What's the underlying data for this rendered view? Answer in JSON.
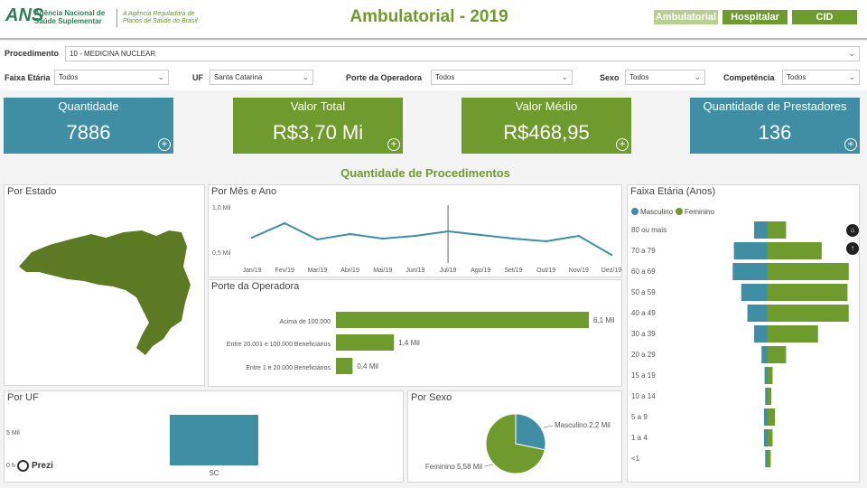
{
  "header": {
    "logo_mark": "ANS",
    "logo_line1": "Agência Nacional de",
    "logo_line2": "Saúde Suplementar",
    "logo_sub1": "A Agência Reguladora de",
    "logo_sub2": "Planos de Saúde do Brasil",
    "title": "Ambulatorial - 2019",
    "nav": [
      "Ambulatorial",
      "Hospitalar",
      "CID"
    ]
  },
  "filters": {
    "procedimento_label": "Procedimento",
    "procedimento_value": "10 - MEDICINA NUCLEAR",
    "faixa_label": "Faixa Etária",
    "faixa_value": "Todos",
    "uf_label": "UF",
    "uf_value": "Santa Catarina",
    "porte_label": "Porte da Operadora",
    "porte_value": "Todos",
    "sexo_label": "Sexo",
    "sexo_value": "Todos",
    "competencia_label": "Competência",
    "competencia_value": "Todos"
  },
  "kpis": [
    {
      "title": "Quantidade",
      "value": "7886"
    },
    {
      "title": "Valor Total",
      "value": "R$3,70 Mi"
    },
    {
      "title": "Valor Médio",
      "value": "R$468,95"
    },
    {
      "title": "Quantidade de Prestadores",
      "value": "136"
    }
  ],
  "section_title": "Quantidade de Procedimentos",
  "panels": {
    "estado": "Por Estado",
    "mes": "Por Mês e Ano",
    "porte": "Porte da Operadora",
    "faixa": "Faixa Etária (Anos)",
    "uf": "Por UF",
    "sexo": "Por Sexo"
  },
  "watermark": "Prezi",
  "colors": {
    "teal": "#3f8ea4",
    "green": "#6f9a2e",
    "map": "#5c7a23"
  },
  "chart_data": [
    {
      "type": "line",
      "title": "Por Mês e Ano",
      "categories": [
        "Jan/19",
        "Fev/19",
        "Mar/19",
        "Abr/19",
        "Mai/19",
        "Jun/19",
        "Jul/19",
        "Ago/19",
        "Set/19",
        "Out/19",
        "Nov/19",
        "Dez/19"
      ],
      "values": [
        0.66,
        0.82,
        0.64,
        0.7,
        0.65,
        0.68,
        0.73,
        0.69,
        0.65,
        0.62,
        0.68,
        0.47
      ],
      "ytick_labels": [
        "1,0 Mil",
        "0,5 Mil"
      ],
      "ytick_values": [
        1.0,
        0.5
      ],
      "ylim": [
        0.4,
        1.0
      ]
    },
    {
      "type": "bar",
      "title": "Porte da Operadora",
      "categories": [
        "Acima de 100.000",
        "Entre 20.001 e 100.000 Beneficiários",
        "Entre 1 e 20.000 Beneficiários"
      ],
      "values": [
        6.1,
        1.4,
        0.4
      ],
      "data_labels": [
        "6,1 Mil",
        "1,4 Mil",
        "0,4 Mil"
      ]
    },
    {
      "type": "bar",
      "title": "Faixa Etária (Anos)",
      "categories": [
        "80 ou mais",
        "70 a 79",
        "60 a 69",
        "50 a 59",
        "40 a 49",
        "30 a 39",
        "20 a 29",
        "15 a 19",
        "10 a 14",
        "5 a 9",
        "1 a 4",
        "<1"
      ],
      "series": [
        {
          "name": "Masculino",
          "values": [
            0.22,
            0.55,
            0.57,
            0.43,
            0.33,
            0.22,
            0.1,
            0.05,
            0.04,
            0.06,
            0.06,
            0.04
          ]
        },
        {
          "name": "Feminino",
          "values": [
            0.3,
            0.88,
            1.32,
            1.3,
            1.32,
            0.82,
            0.3,
            0.08,
            0.06,
            0.12,
            0.08,
            0.05
          ]
        }
      ]
    },
    {
      "type": "bar",
      "title": "Por UF",
      "categories": [
        "SC"
      ],
      "values": [
        7.886
      ],
      "ytick_labels": [
        "5 Mil",
        "0 Mil"
      ],
      "ytick_values": [
        5,
        0
      ]
    },
    {
      "type": "pie",
      "title": "Por Sexo",
      "categories": [
        "Masculino",
        "Feminino"
      ],
      "values": [
        2.2,
        5.58
      ],
      "data_labels": [
        "Masculino 2,2 Mil",
        "Feminino 5,58 Mil"
      ]
    }
  ]
}
